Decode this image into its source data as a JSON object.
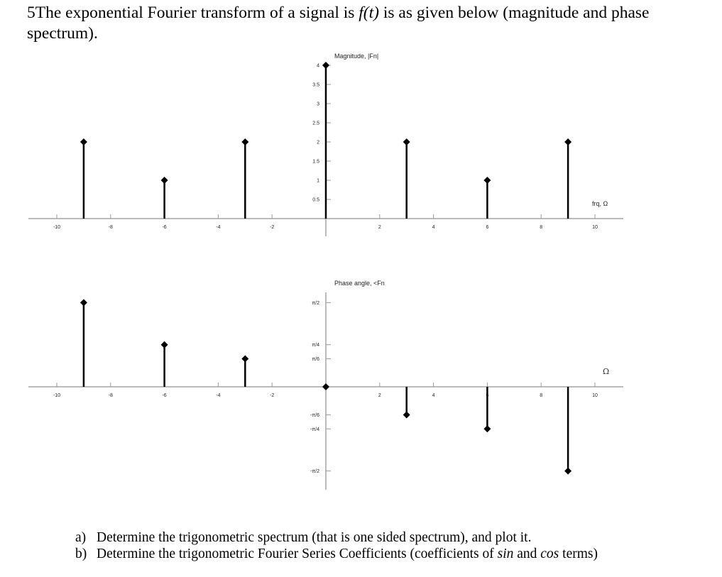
{
  "header": {
    "prefix": "5The exponential Fourier transform of a signal is ",
    "func": "f(t)",
    "suffix": " is as given below (magnitude and phase spectrum)."
  },
  "chart_data": [
    {
      "type": "stem",
      "title": "Magnitude, |Fn|",
      "xlabel": "frq, Ω",
      "x_ticks": [
        -10,
        -8,
        -6,
        -4,
        -2,
        2,
        4,
        6,
        8,
        10
      ],
      "x_tick_labels": [
        "-10",
        "-8",
        "-6",
        "-4",
        "-2",
        "2",
        "4",
        "6",
        "8",
        "10"
      ],
      "y_ticks": [
        0.5,
        1,
        1.5,
        2,
        2.5,
        3,
        3.5,
        4
      ],
      "y_tick_labels": [
        "0.5",
        "1",
        "1.5",
        "2",
        "2.5",
        "3",
        "3.5",
        "4"
      ],
      "xlim": [
        -11,
        11
      ],
      "ylim": [
        0,
        4
      ],
      "x": [
        -9,
        -6,
        -3,
        0,
        3,
        6,
        9
      ],
      "values": [
        2,
        1,
        2,
        4,
        2,
        1,
        2
      ]
    },
    {
      "type": "stem",
      "title": "Phase angle, <Fn",
      "xlabel": "Ω",
      "x_ticks": [
        -10,
        -8,
        -6,
        -4,
        -2,
        2,
        4,
        6,
        8,
        10
      ],
      "x_tick_labels": [
        "-10",
        "-8",
        "-6",
        "-4",
        "-2",
        "2",
        "4",
        "6",
        "8",
        "10"
      ],
      "y_ticks": [
        1.5708,
        0.7854,
        0.5236,
        -0.5236,
        -0.7854,
        -1.5708
      ],
      "y_tick_labels": [
        "π/2",
        "π/4",
        "π/6",
        "-π/6",
        "-π/4",
        "-π/2"
      ],
      "xlim": [
        -11,
        11
      ],
      "ylim": [
        -1.5708,
        1.5708
      ],
      "x": [
        -9,
        -6,
        -3,
        0,
        3,
        6,
        9
      ],
      "values": [
        1.5708,
        0.7854,
        0.5236,
        0,
        -0.5236,
        -0.7854,
        -1.5708
      ]
    }
  ],
  "questions": [
    {
      "letter": "a)",
      "text": "Determine the trigonometric spectrum (that is one sided spectrum), and plot it."
    },
    {
      "letter": "b)",
      "pre": "Determine the trigonometric Fourier Series Coefficients (coefficients of ",
      "sin": "sin",
      "mid": " and ",
      "cos": "cos",
      "post": " terms)"
    }
  ]
}
